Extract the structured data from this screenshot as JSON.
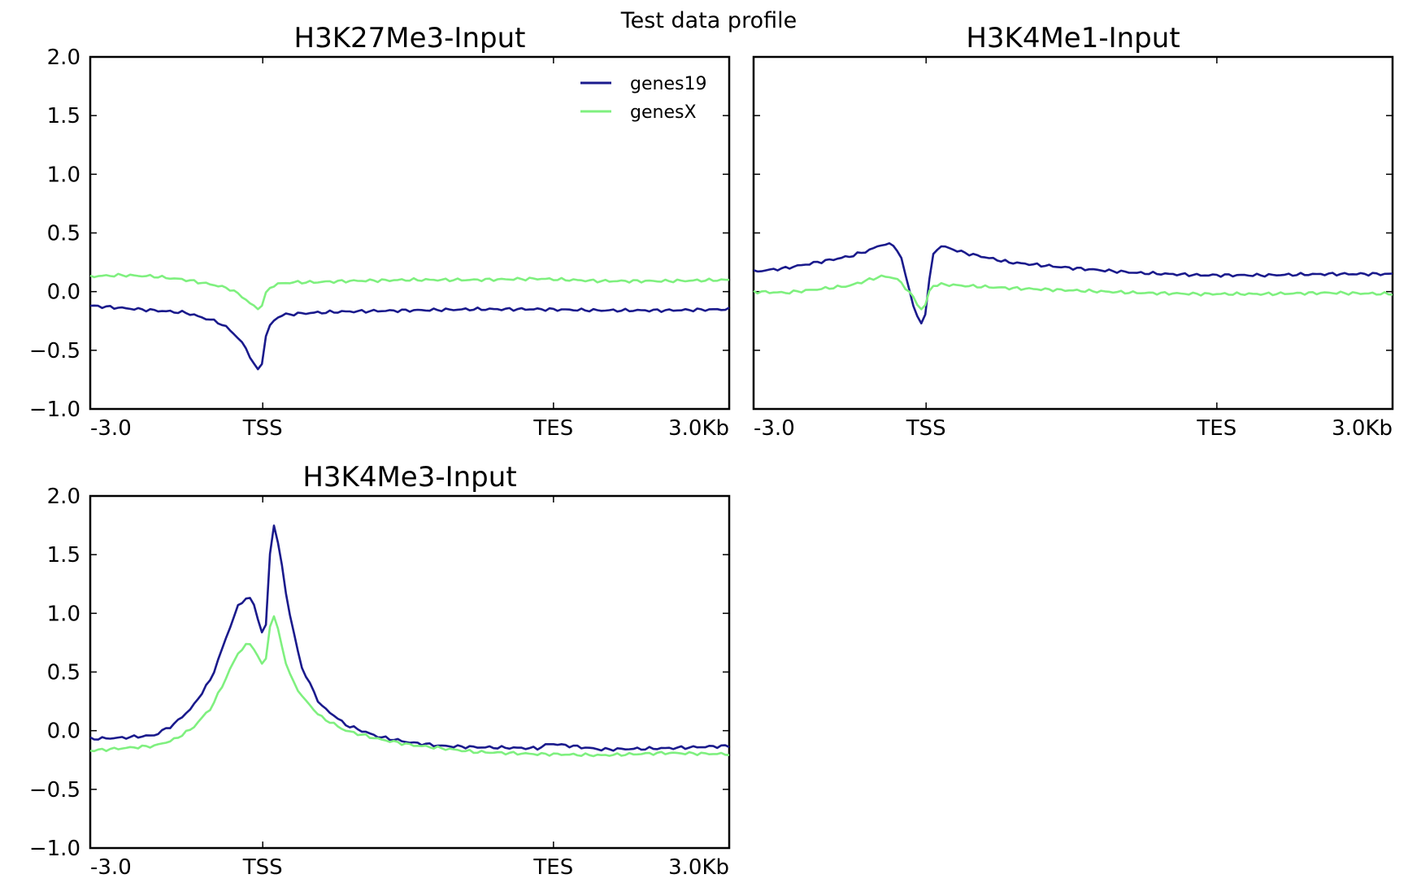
{
  "chart_data": [
    {
      "type": "line",
      "title": "H3K27Me3-Input",
      "ylim": [
        -1.0,
        2.0
      ],
      "yticks": [
        "2.0",
        "1.5",
        "1.0",
        "0.5",
        "0.0",
        "−0.5",
        "−1.0"
      ],
      "xticks": [
        "-3.0",
        "TSS",
        "TES",
        "3.0Kb"
      ],
      "legend": "top-right",
      "x": [
        0,
        0.05,
        0.1,
        0.15,
        0.2,
        0.22,
        0.24,
        0.25,
        0.26,
        0.265,
        0.27,
        0.275,
        0.28,
        0.29,
        0.3,
        0.32,
        0.35,
        0.4,
        0.5,
        0.6,
        0.7,
        0.8,
        0.9,
        1.0
      ],
      "series": [
        {
          "name": "genes19",
          "color": "#1a1a8c",
          "values": [
            -0.12,
            -0.14,
            -0.16,
            -0.18,
            -0.26,
            -0.33,
            -0.45,
            -0.55,
            -0.66,
            -0.68,
            -0.58,
            -0.38,
            -0.3,
            -0.23,
            -0.2,
            -0.19,
            -0.18,
            -0.17,
            -0.16,
            -0.15,
            -0.15,
            -0.16,
            -0.16,
            -0.15
          ]
        },
        {
          "name": "genesX",
          "color": "#7ff07f",
          "values": [
            0.13,
            0.14,
            0.13,
            0.1,
            0.05,
            0.02,
            -0.05,
            -0.1,
            -0.14,
            -0.15,
            -0.1,
            -0.02,
            0.03,
            0.06,
            0.07,
            0.08,
            0.08,
            0.09,
            0.1,
            0.1,
            0.11,
            0.09,
            0.09,
            0.1
          ]
        }
      ]
    },
    {
      "type": "line",
      "title": "H3K4Me1-Input",
      "ylim": [
        -1.0,
        2.0
      ],
      "xticks": [
        "-3.0",
        "TSS",
        "TES",
        "3.0Kb"
      ],
      "x": [
        0,
        0.05,
        0.1,
        0.15,
        0.18,
        0.2,
        0.22,
        0.23,
        0.24,
        0.25,
        0.26,
        0.265,
        0.27,
        0.275,
        0.28,
        0.29,
        0.3,
        0.33,
        0.4,
        0.5,
        0.6,
        0.7,
        0.8,
        0.9,
        1.0
      ],
      "series": [
        {
          "name": "genes19",
          "color": "#1a1a8c",
          "values": [
            0.17,
            0.2,
            0.25,
            0.3,
            0.35,
            0.4,
            0.4,
            0.3,
            0.1,
            -0.12,
            -0.27,
            -0.28,
            -0.15,
            0.1,
            0.3,
            0.39,
            0.38,
            0.33,
            0.25,
            0.2,
            0.16,
            0.14,
            0.14,
            0.15,
            0.15
          ]
        },
        {
          "name": "genesX",
          "color": "#7ff07f",
          "values": [
            0.0,
            -0.01,
            0.02,
            0.05,
            0.1,
            0.13,
            0.12,
            0.08,
            0.02,
            -0.05,
            -0.14,
            -0.16,
            -0.1,
            0.0,
            0.05,
            0.06,
            0.06,
            0.05,
            0.03,
            0.01,
            -0.01,
            -0.02,
            -0.02,
            -0.01,
            -0.02
          ]
        }
      ]
    },
    {
      "type": "line",
      "title": "H3K4Me3-Input",
      "ylim": [
        -1.0,
        2.0
      ],
      "yticks": [
        "2.0",
        "1.5",
        "1.0",
        "0.5",
        "0.0",
        "−0.5",
        "−1.0"
      ],
      "xticks": [
        "-3.0",
        "TSS",
        "TES",
        "3.0Kb"
      ],
      "x": [
        0,
        0.05,
        0.1,
        0.13,
        0.16,
        0.19,
        0.21,
        0.23,
        0.245,
        0.255,
        0.265,
        0.27,
        0.275,
        0.28,
        0.285,
        0.29,
        0.3,
        0.31,
        0.33,
        0.36,
        0.4,
        0.45,
        0.5,
        0.55,
        0.6,
        0.7,
        0.72,
        0.8,
        0.9,
        1.0
      ],
      "series": [
        {
          "name": "genes19",
          "color": "#1a1a8c",
          "values": [
            -0.07,
            -0.06,
            -0.04,
            0.05,
            0.2,
            0.45,
            0.75,
            1.05,
            1.14,
            1.1,
            0.9,
            0.82,
            0.9,
            1.4,
            1.8,
            1.72,
            1.4,
            1.05,
            0.55,
            0.22,
            0.05,
            -0.05,
            -0.1,
            -0.13,
            -0.14,
            -0.15,
            -0.11,
            -0.16,
            -0.15,
            -0.13
          ]
        },
        {
          "name": "genesX",
          "color": "#7ff07f",
          "values": [
            -0.17,
            -0.15,
            -0.13,
            -0.08,
            0.02,
            0.2,
            0.42,
            0.65,
            0.74,
            0.72,
            0.6,
            0.55,
            0.62,
            0.85,
            1.0,
            0.95,
            0.72,
            0.5,
            0.3,
            0.12,
            0.0,
            -0.07,
            -0.12,
            -0.15,
            -0.18,
            -0.2,
            -0.2,
            -0.21,
            -0.19,
            -0.2
          ]
        }
      ]
    }
  ],
  "suptitle": "Test data profile"
}
